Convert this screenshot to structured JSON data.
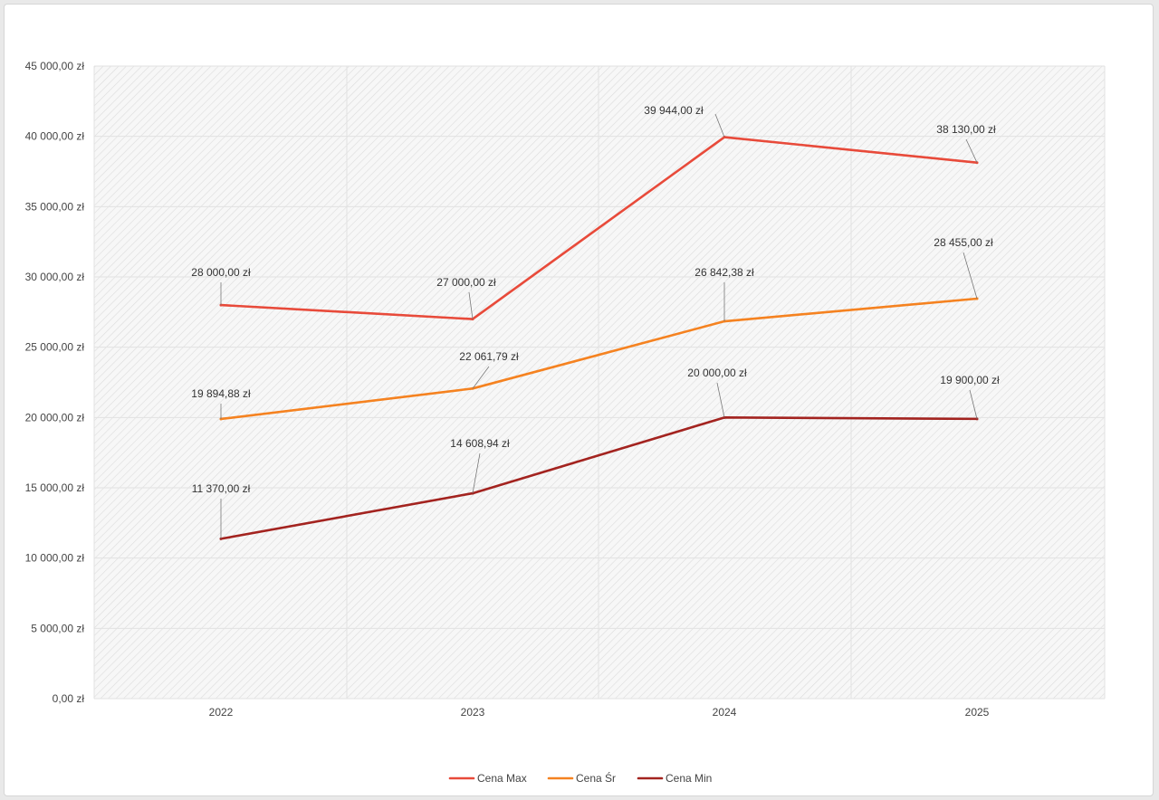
{
  "chart_data": {
    "type": "line",
    "title": "",
    "xlabel": "",
    "ylabel": "",
    "categories": [
      "2022",
      "2023",
      "2024",
      "2025"
    ],
    "ylim": [
      0,
      45000
    ],
    "yticks": [
      0,
      5000,
      10000,
      15000,
      20000,
      25000,
      30000,
      35000,
      40000,
      45000
    ],
    "ytick_labels": [
      "0,00 zł",
      "5 000,00 zł",
      "10 000,00 zł",
      "15 000,00 zł",
      "20 000,00 zł",
      "25 000,00 zł",
      "30 000,00 zł",
      "35 000,00 zł",
      "40 000,00 zł",
      "45 000,00 zł"
    ],
    "grid": true,
    "legend_position": "bottom",
    "series": [
      {
        "name": "Cena Max",
        "color": "#e84a3a",
        "values": [
          28000,
          27000,
          39944,
          38130
        ],
        "labels": [
          "28 000,00 zł",
          "27 000,00 zł",
          "39 944,00 zł",
          "38 130,00 zł"
        ]
      },
      {
        "name": "Cena Śr",
        "color": "#f58220",
        "values": [
          19894.88,
          22061.79,
          26842.38,
          28455
        ],
        "labels": [
          "19 894,88 zł",
          "22 061,79 zł",
          "26 842,38 zł",
          "28 455,00 zł"
        ]
      },
      {
        "name": "Cena Min",
        "color": "#a3231f",
        "values": [
          11370,
          14608.94,
          20000,
          19900
        ],
        "labels": [
          "11 370,00 zł",
          "14 608,94 zł",
          "20 000,00 zł",
          "19 900,00 zł"
        ]
      }
    ]
  }
}
